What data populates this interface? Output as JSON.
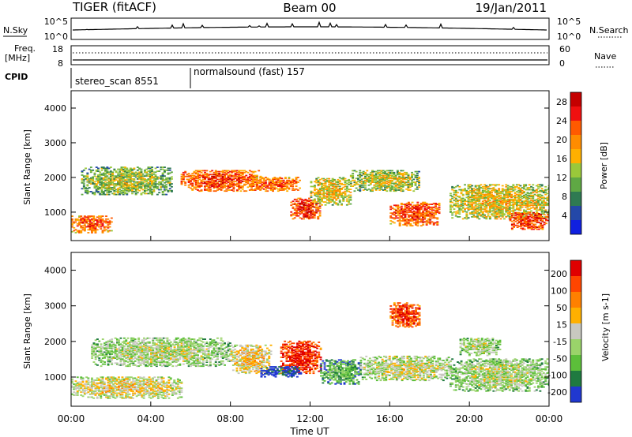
{
  "header": {
    "station": "TIGER (fitACF)",
    "beam": "Beam 00",
    "date": "19/Jan/2011"
  },
  "status_panels": {
    "nsky_label": "N.Sky",
    "nsky_ticks": [
      "10^5",
      "10^0"
    ],
    "nsearch_label": "N.Search",
    "nsearch_ticks": [
      "10^5",
      "10^0"
    ],
    "freq_label_line1": "Freq.",
    "freq_label_line2": "[MHz]",
    "freq_ticks": [
      "18",
      "8"
    ],
    "nave_label": "Nave",
    "nave_ticks": [
      "60",
      "0"
    ],
    "cpid_label": "CPID",
    "cpid_segments": [
      {
        "label": "stereo_scan 8551",
        "start_hour": 0,
        "end_hour": 6
      },
      {
        "label": "normalsound (fast) 157",
        "start_hour": 6,
        "end_hour": 24
      }
    ]
  },
  "chart_data": [
    {
      "type": "heatmap",
      "variable": "Power",
      "xlabel": "Time UT",
      "ylabel": "Slant Range [km]",
      "x_tick_labels": [
        "00:00",
        "04:00",
        "08:00",
        "12:00",
        "16:00",
        "20:00",
        "00:00"
      ],
      "x_hours": [
        0,
        4,
        8,
        12,
        16,
        20,
        24
      ],
      "xlim": [
        0,
        24
      ],
      "y_ticks": [
        1000,
        2000,
        3000,
        4000
      ],
      "ylim": [
        180,
        4500
      ],
      "colorbar": {
        "label": "Power [dB]",
        "tick_labels": [
          "4",
          "8",
          "12",
          "16",
          "20",
          "24",
          "28"
        ],
        "colors": [
          "#1020e0",
          "#2448a8",
          "#2f7a52",
          "#5fa844",
          "#9ac83a",
          "#ffb000",
          "#ff8c00",
          "#ff5a00",
          "#f01010",
          "#c40000"
        ]
      },
      "echo_regions": [
        {
          "t_start": 0,
          "t_end": 2,
          "range_start": 400,
          "range_end": 900,
          "level": 0.75
        },
        {
          "t_start": 0.5,
          "t_end": 5,
          "range_start": 1500,
          "range_end": 2300,
          "level": 0.45
        },
        {
          "t_start": 5.5,
          "t_end": 9.5,
          "range_start": 1600,
          "range_end": 2200,
          "level": 0.8
        },
        {
          "t_start": 9,
          "t_end": 11.5,
          "range_start": 1600,
          "range_end": 2000,
          "level": 0.75
        },
        {
          "t_start": 11,
          "t_end": 12.5,
          "range_start": 800,
          "range_end": 1400,
          "level": 0.85
        },
        {
          "t_start": 12,
          "t_end": 14,
          "range_start": 1200,
          "range_end": 2000,
          "level": 0.55
        },
        {
          "t_start": 14,
          "t_end": 17.5,
          "range_start": 1600,
          "range_end": 2200,
          "level": 0.5
        },
        {
          "t_start": 16,
          "t_end": 18.5,
          "range_start": 600,
          "range_end": 1300,
          "level": 0.8
        },
        {
          "t_start": 19,
          "t_end": 24,
          "range_start": 800,
          "range_end": 1800,
          "level": 0.55
        },
        {
          "t_start": 22,
          "t_end": 24,
          "range_start": 500,
          "range_end": 1000,
          "level": 0.85
        }
      ]
    },
    {
      "type": "heatmap",
      "variable": "Velocity",
      "xlabel": "Time UT",
      "ylabel": "Slant Range [km]",
      "x_tick_labels": [
        "00:00",
        "04:00",
        "08:00",
        "12:00",
        "16:00",
        "20:00",
        "00:00"
      ],
      "x_hours": [
        0,
        4,
        8,
        12,
        16,
        20,
        24
      ],
      "xlim": [
        0,
        24
      ],
      "y_ticks": [
        1000,
        2000,
        3000,
        4000
      ],
      "ylim": [
        180,
        4500
      ],
      "colorbar": {
        "label": "Velocity [m s-1]",
        "tick_labels": [
          "200",
          "100",
          "50",
          "15",
          "-15",
          "-50",
          "-100",
          "-200"
        ],
        "colors": [
          "#2038d0",
          "#1f7a40",
          "#5cbf3a",
          "#9ad36a",
          "#c8c8c0",
          "#ffb000",
          "#ff8000",
          "#ff4500",
          "#e00000"
        ]
      },
      "echo_regions": [
        {
          "t_start": 0,
          "t_end": 5.5,
          "range_start": 400,
          "range_end": 1000,
          "level": 0.55
        },
        {
          "t_start": 1,
          "t_end": 8,
          "range_start": 1300,
          "range_end": 2100,
          "level": 0.45
        },
        {
          "t_start": 8,
          "t_end": 10,
          "range_start": 1100,
          "range_end": 1900,
          "level": 0.6
        },
        {
          "t_start": 10.5,
          "t_end": 12.5,
          "range_start": 1100,
          "range_end": 2000,
          "level": 0.95
        },
        {
          "t_start": 9.5,
          "t_end": 11.5,
          "range_start": 1000,
          "range_end": 1300,
          "level": 0.1
        },
        {
          "t_start": 12.5,
          "t_end": 14.5,
          "range_start": 800,
          "range_end": 1500,
          "level": 0.3
        },
        {
          "t_start": 14.5,
          "t_end": 19,
          "range_start": 900,
          "range_end": 1600,
          "level": 0.5
        },
        {
          "t_start": 19,
          "t_end": 24,
          "range_start": 600,
          "range_end": 1500,
          "level": 0.45
        },
        {
          "t_start": 19.5,
          "t_end": 21.5,
          "range_start": 1600,
          "range_end": 2100,
          "level": 0.45
        },
        {
          "t_start": 16,
          "t_end": 17.5,
          "range_start": 2400,
          "range_end": 3100,
          "level": 0.9
        }
      ]
    }
  ]
}
